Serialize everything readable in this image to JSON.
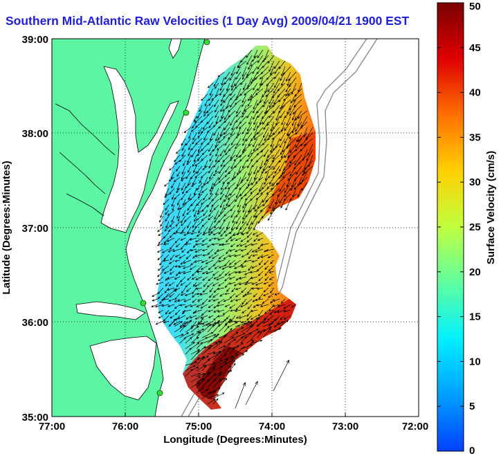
{
  "title": "Southern Mid-Atlantic Raw Velocities (1 Day Avg) 2009/04/21 1900 EST",
  "chart_data": {
    "type": "heatmap",
    "xlabel": "Longitude (Degrees:Minutes)",
    "ylabel": "Latitude (Degrees:Minutes)",
    "x_ticks": [
      "77:00",
      "76:00",
      "75:00",
      "74:00",
      "73:00",
      "72:00"
    ],
    "y_ticks": [
      "39:00",
      "38:00",
      "37:00",
      "36:00",
      "35:00"
    ],
    "xlim": [
      -77,
      -72
    ],
    "ylim": [
      35,
      39
    ],
    "grid": true,
    "colorbar": {
      "label": "Surface Velocity (cm/s)",
      "ticks": [
        "50",
        "45",
        "40",
        "35",
        "30",
        "25",
        "20",
        "15",
        "10",
        "5",
        "0"
      ],
      "range": [
        0,
        50
      ],
      "colormap": "jet"
    },
    "colors": {
      "land": "#5cf5a4",
      "coastline": "#000000",
      "bathymetry": "#8c8c8c",
      "title": "#1f1fd8",
      "station": "#33dd33"
    }
  }
}
